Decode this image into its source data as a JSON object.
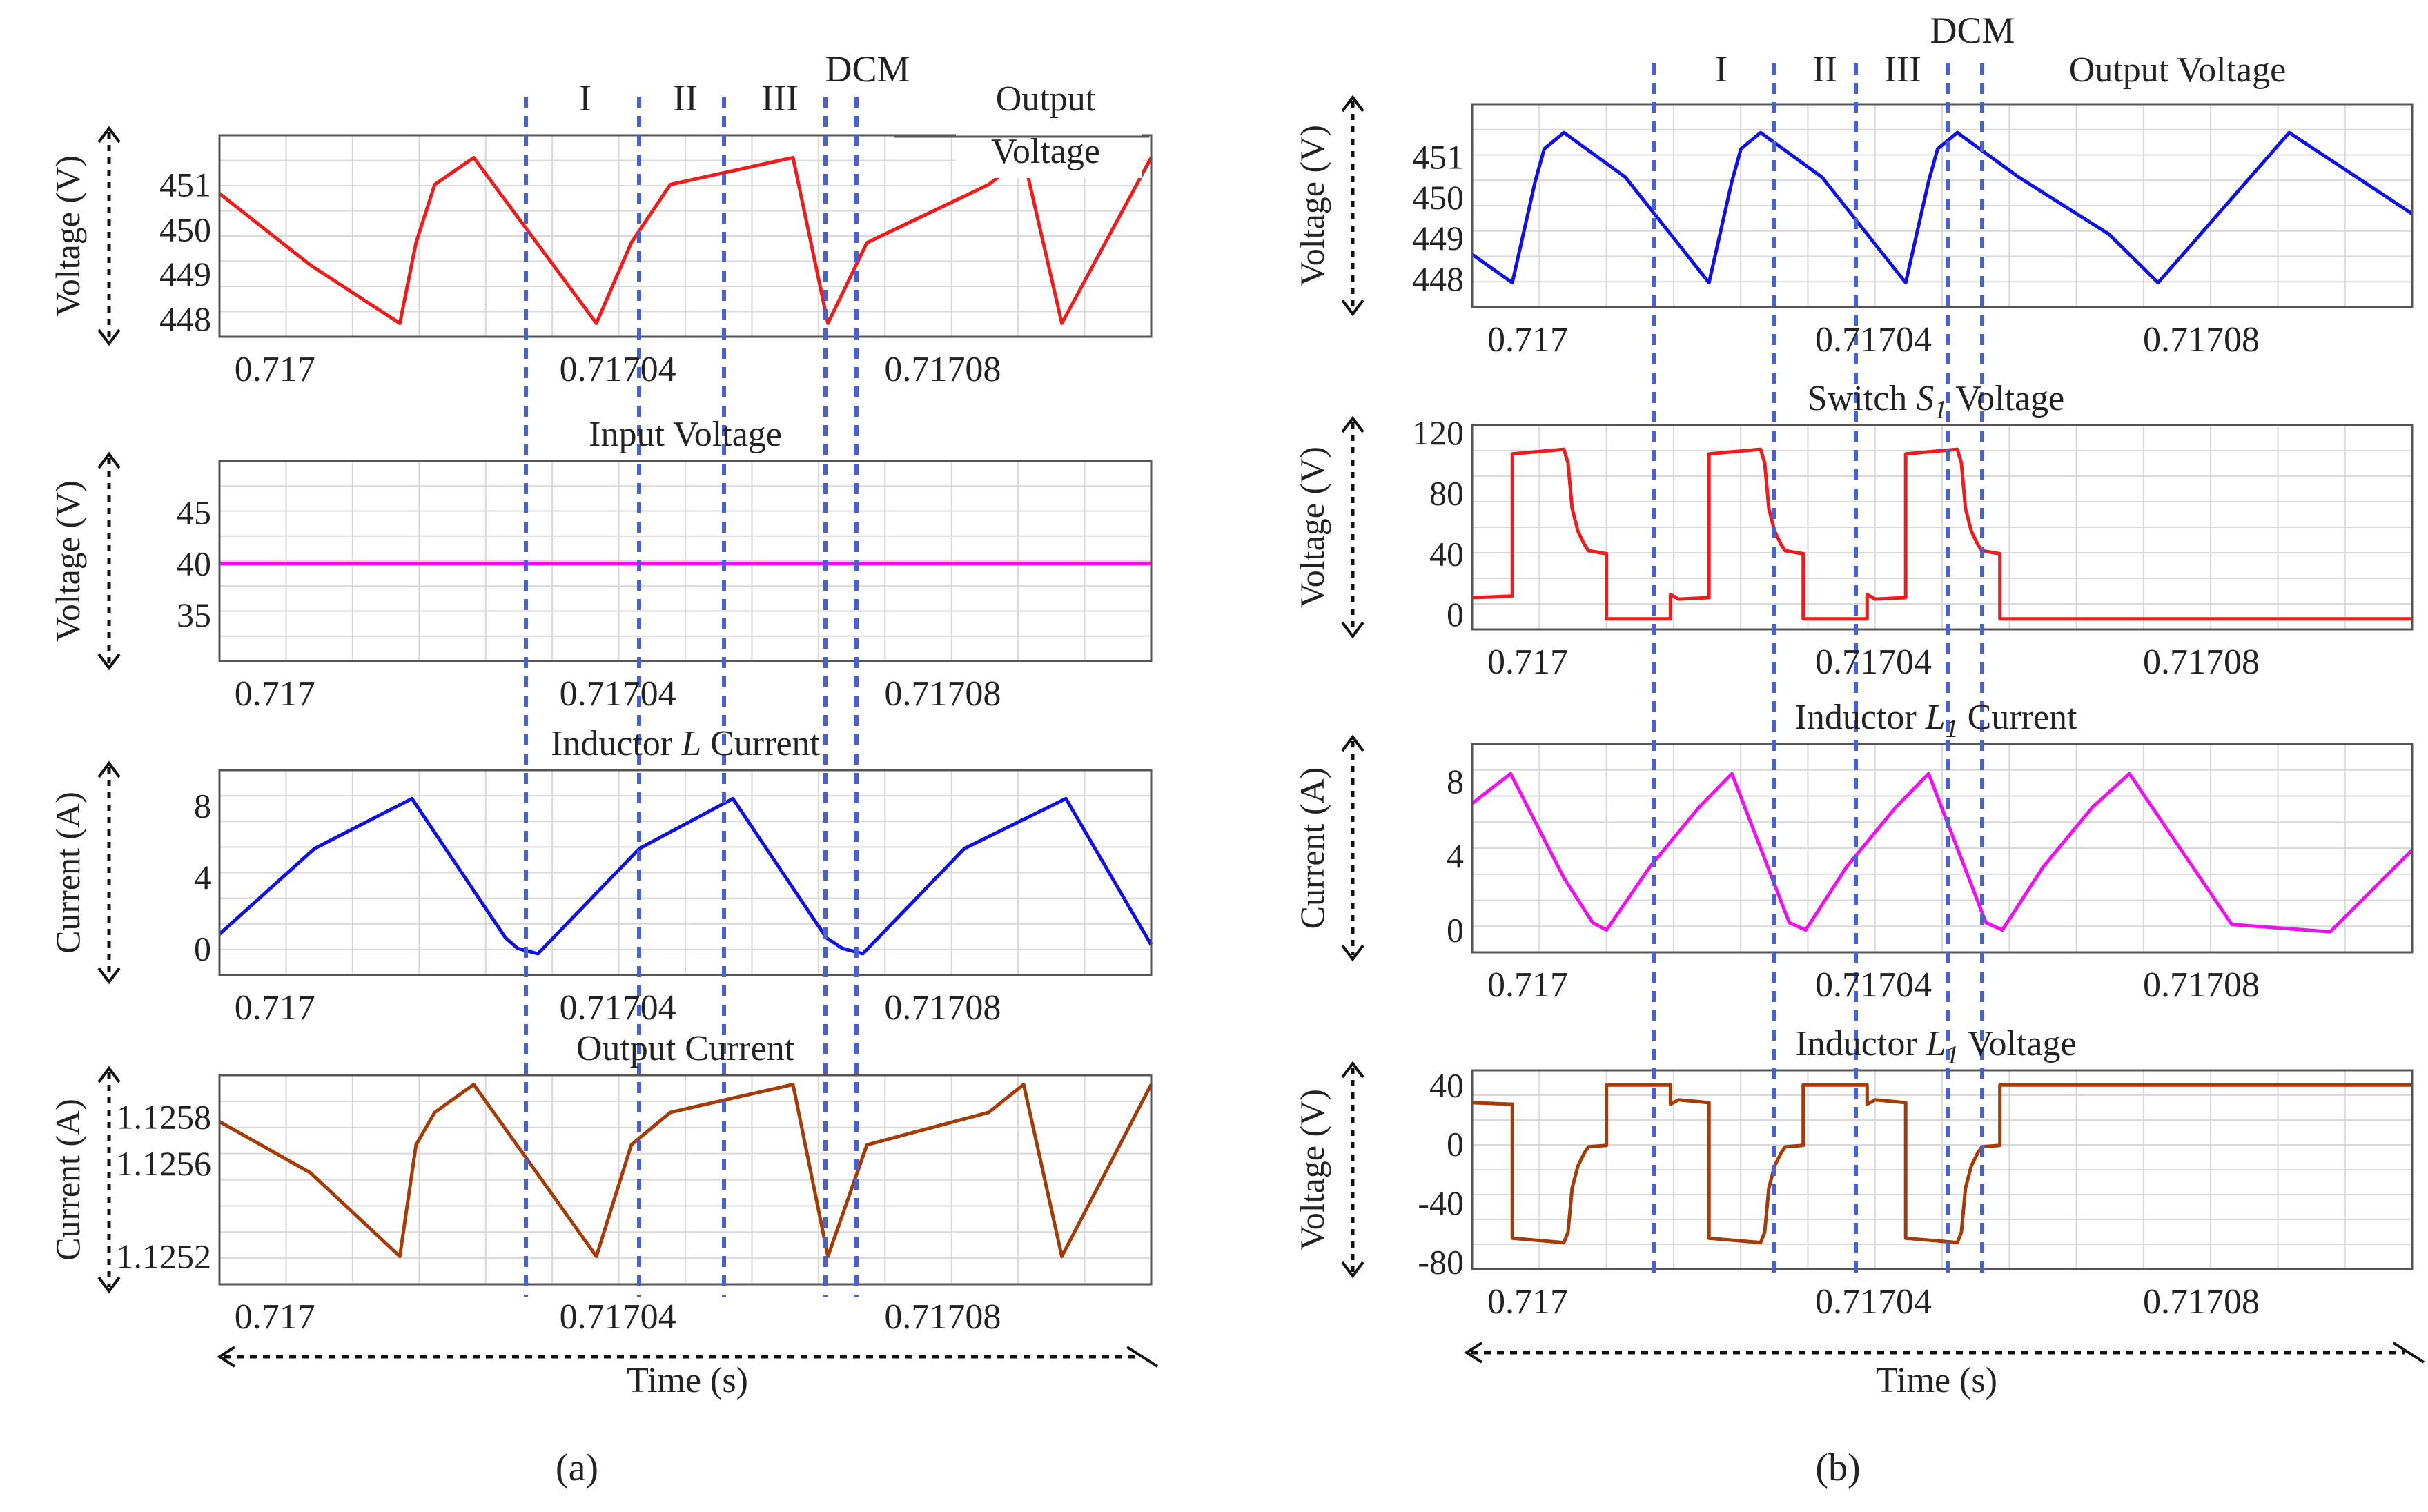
{
  "figure": {
    "panel_a_label": "(a)",
    "panel_b_label": "(b)",
    "time_label_a": "Time (s)",
    "time_label_b": "Time (s)"
  },
  "colors": {
    "red": "#ee1c1c",
    "blue": "#1010e0",
    "magenta": "#ee11ee",
    "brown": "#a33c06",
    "dash": "#4a5fd0",
    "axis": "#555555",
    "grid": "#d9d9d9"
  },
  "chart_data": [
    {
      "id": "a1",
      "type": "line",
      "title": "",
      "legend": "Output Voltage",
      "ylabel": "Voltage (V)",
      "xlabel": "Time (s)",
      "xlim": [
        0.7169973,
        0.717112
      ],
      "ylim": [
        447.6,
        452.1
      ],
      "yticks": [
        451,
        450,
        449,
        448
      ],
      "xticks": [
        0.717,
        0.71704,
        0.71708
      ],
      "xtick_labels": [
        "0.717",
        "0.71704",
        "0.71708"
      ],
      "color": "#ee1c1c",
      "x": [
        0.7169973,
        0.7170085,
        0.7170195,
        0.7170215,
        0.7170238,
        0.7170286,
        0.7170437,
        0.717048,
        0.7170528,
        0.7170679,
        0.7170722,
        0.717077,
        0.717092,
        0.7170963,
        0.717101,
        0.717112
      ],
      "y": [
        450.8,
        449.2,
        447.9,
        449.7,
        451.0,
        451.6,
        447.9,
        449.7,
        451.0,
        451.6,
        447.9,
        449.7,
        451.0,
        451.6,
        447.9,
        451.6
      ],
      "phase_labels": [
        "I",
        "II",
        "III",
        "DCM"
      ]
    },
    {
      "id": "a2",
      "type": "line",
      "title": "Input Voltage",
      "legend": "",
      "ylabel": "Voltage (V)",
      "xlabel": "Time (s)",
      "xlim": [
        0.7169973,
        0.717112
      ],
      "ylim": [
        30.5,
        50
      ],
      "yticks": [
        45,
        40,
        35
      ],
      "xticks": [
        0.717,
        0.71704,
        0.71708
      ],
      "xtick_labels": [
        "0.717",
        "0.71704",
        "0.71708"
      ],
      "color": "#ee11ee",
      "x": [
        0.7169973,
        0.717112
      ],
      "y": [
        40,
        40
      ]
    },
    {
      "id": "a3",
      "type": "line",
      "title": "Inductor L Current",
      "title_prefix": "Inductor ",
      "title_italic": "L",
      "title_suffix": " Current",
      "ylabel": "Current (A)",
      "xlabel": "Time (s)",
      "xlim": [
        0.7169973,
        0.717112
      ],
      "ylim": [
        -1.5,
        10
      ],
      "yticks": [
        8,
        4,
        0
      ],
      "xticks": [
        0.717,
        0.71704,
        0.71708
      ],
      "xtick_labels": [
        "0.717",
        "0.71704",
        "0.71708"
      ],
      "color": "#1010e0",
      "x": [
        0.7169973,
        0.717009,
        0.717021,
        0.7170325,
        0.717034,
        0.7170365,
        0.717049,
        0.7170605,
        0.717072,
        0.717074,
        0.7170765,
        0.717089,
        0.7171015,
        0.717112
      ],
      "y": [
        0.8,
        5.6,
        8.4,
        0.6,
        0.0,
        -0.3,
        5.6,
        8.4,
        0.6,
        0.0,
        -0.3,
        5.6,
        8.4,
        0.2
      ]
    },
    {
      "id": "a4",
      "type": "line",
      "title": "Output Current",
      "legend": "",
      "ylabel": "Current (A)",
      "xlabel": "Time (s)",
      "xlim": [
        0.7169973,
        0.717112
      ],
      "ylim": [
        1.12508,
        1.12598
      ],
      "yticks": [
        1.1258,
        1.1256,
        1.1252
      ],
      "xticks": [
        0.717,
        0.71704,
        0.71708
      ],
      "xtick_labels": [
        "0.717",
        "0.71704",
        "0.71708"
      ],
      "color": "#a33c06",
      "x": [
        0.7169973,
        0.7170085,
        0.7170195,
        0.7170215,
        0.7170238,
        0.7170286,
        0.7170437,
        0.717048,
        0.7170528,
        0.7170679,
        0.7170722,
        0.717077,
        0.717092,
        0.7170963,
        0.717101,
        0.717112
      ],
      "y": [
        1.12578,
        1.12556,
        1.1252,
        1.12568,
        1.12582,
        1.12594,
        1.1252,
        1.12568,
        1.12582,
        1.12594,
        1.1252,
        1.12568,
        1.12582,
        1.12594,
        1.1252,
        1.12594
      ]
    },
    {
      "id": "b1",
      "type": "line",
      "title": "",
      "legend": "Output Voltage",
      "ylabel": "Voltage (V)",
      "xlabel": "Time (s)",
      "xlim": [
        0.7169973,
        0.717112
      ],
      "ylim": [
        447.3,
        452.3
      ],
      "yticks": [
        451,
        450,
        449,
        448
      ],
      "xticks": [
        0.717,
        0.71704,
        0.71708
      ],
      "xtick_labels": [
        "0.717",
        "0.71704",
        "0.71708"
      ],
      "color": "#1010e0",
      "x": [
        0.7169973,
        0.7170022,
        0.717005,
        0.7170061,
        0.7170085,
        0.717016,
        0.7170262,
        0.717029,
        0.7170301,
        0.7170325,
        0.71704,
        0.7170502,
        0.717053,
        0.7170541,
        0.7170565,
        0.717064,
        0.717075,
        0.717081,
        0.717097,
        0.717112
      ],
      "y": [
        448.6,
        447.9,
        450.4,
        451.2,
        451.6,
        450.5,
        447.9,
        450.4,
        451.2,
        451.6,
        450.5,
        447.9,
        450.4,
        451.2,
        451.6,
        450.5,
        449.1,
        447.9,
        451.6,
        449.6
      ],
      "phase_labels": [
        "I",
        "II",
        "III",
        "DCM"
      ]
    },
    {
      "id": "b2",
      "type": "line",
      "title": "Switch S1 Voltage",
      "title_prefix": "Switch ",
      "title_italic": "S",
      "title_sub": "1",
      "title_suffix": " Voltage",
      "ylabel": "Voltage (V)",
      "xlabel": "Time (s)",
      "xlim": [
        0.7169973,
        0.717112
      ],
      "ylim": [
        -10,
        125
      ],
      "yticks": [
        120,
        80,
        40,
        0
      ],
      "xticks": [
        0.717,
        0.71704,
        0.71708
      ],
      "xtick_labels": [
        "0.717",
        "0.71704",
        "0.71708"
      ],
      "color": "#ee1c1c",
      "x": [
        0.7169973,
        0.7170022,
        0.7170022,
        0.7170085,
        0.717009,
        0.7170095,
        0.7170102,
        0.717011,
        0.7170115,
        0.7170137,
        0.7170137,
        0.7170215,
        0.7170215,
        0.7170225,
        0.7170262,
        0.7170262,
        0.7170325,
        0.717033,
        0.7170335,
        0.7170342,
        0.717035,
        0.7170355,
        0.7170377,
        0.7170377,
        0.7170455,
        0.7170455,
        0.7170465,
        0.7170502,
        0.7170502,
        0.7170565,
        0.717057,
        0.7170575,
        0.7170582,
        0.717059,
        0.7170595,
        0.7170617,
        0.7170617,
        0.717112
      ],
      "y": [
        11,
        12,
        106,
        109,
        100,
        70,
        55,
        46,
        42,
        40,
        -3,
        -3,
        13,
        10,
        11,
        106,
        109,
        100,
        70,
        55,
        46,
        42,
        40,
        -3,
        -3,
        13,
        10,
        11,
        106,
        109,
        100,
        70,
        55,
        46,
        42,
        40,
        -3,
        -3
      ]
    },
    {
      "id": "b3",
      "type": "line",
      "title": "Inductor L1 Current",
      "title_prefix": "Inductor ",
      "title_italic": "L",
      "title_sub": "1",
      "title_suffix": " Current",
      "ylabel": "Current (A)",
      "xlabel": "Time (s)",
      "xlim": [
        0.7169973,
        0.717112
      ],
      "ylim": [
        -1.2,
        10
      ],
      "yticks": [
        8,
        4,
        0
      ],
      "xticks": [
        0.717,
        0.71704,
        0.71708
      ],
      "xtick_labels": [
        "0.717",
        "0.71704",
        "0.71708"
      ],
      "color": "#ee11ee",
      "x": [
        0.7169973,
        0.717002,
        0.7170085,
        0.717012,
        0.7170137,
        0.717019,
        0.717025,
        0.717029,
        0.717036,
        0.717038,
        0.717043,
        0.717049,
        0.717053,
        0.71706,
        0.717062,
        0.717067,
        0.717073,
        0.7170775,
        0.71709,
        0.717102,
        0.717112
      ],
      "y": [
        6.8,
        8.4,
        2.8,
        0.4,
        0.0,
        3.4,
        6.6,
        8.4,
        0.4,
        0.0,
        3.4,
        6.6,
        8.4,
        0.4,
        0.0,
        3.4,
        6.6,
        8.4,
        0.3,
        -0.1,
        4.3
      ]
    },
    {
      "id": "b4",
      "type": "line",
      "title": "Inductor L1 Voltage",
      "title_prefix": "Inductor ",
      "title_italic": "L",
      "title_sub": "1",
      "title_suffix": " Voltage",
      "ylabel": "Voltage (V)",
      "xlabel": "Time (s)",
      "xlim": [
        0.7169973,
        0.717112
      ],
      "ylim": [
        -85,
        50
      ],
      "yticks": [
        40,
        0,
        -40,
        -80
      ],
      "xticks": [
        0.717,
        0.71704,
        0.71708
      ],
      "xtick_labels": [
        "0.717",
        "0.71704",
        "0.71708"
      ],
      "color": "#a33c06",
      "x": [
        0.7169973,
        0.7170022,
        0.7170022,
        0.7170085,
        0.717009,
        0.7170095,
        0.7170102,
        0.717011,
        0.7170115,
        0.7170137,
        0.7170137,
        0.7170215,
        0.7170215,
        0.7170225,
        0.7170262,
        0.7170262,
        0.7170325,
        0.717033,
        0.7170335,
        0.7170342,
        0.717035,
        0.7170355,
        0.7170377,
        0.7170377,
        0.7170455,
        0.7170455,
        0.7170465,
        0.7170502,
        0.7170502,
        0.7170565,
        0.717057,
        0.7170575,
        0.7170582,
        0.717059,
        0.7170595,
        0.7170617,
        0.7170617,
        0.717112
      ],
      "y": [
        28,
        27,
        -64,
        -67,
        -60,
        -30,
        -15,
        -6,
        -2,
        -1,
        40,
        40,
        27,
        30,
        28,
        -64,
        -67,
        -60,
        -30,
        -15,
        -6,
        -2,
        -1,
        40,
        40,
        27,
        30,
        28,
        -64,
        -67,
        -60,
        -30,
        -15,
        -6,
        -2,
        -1,
        40,
        40
      ]
    }
  ]
}
